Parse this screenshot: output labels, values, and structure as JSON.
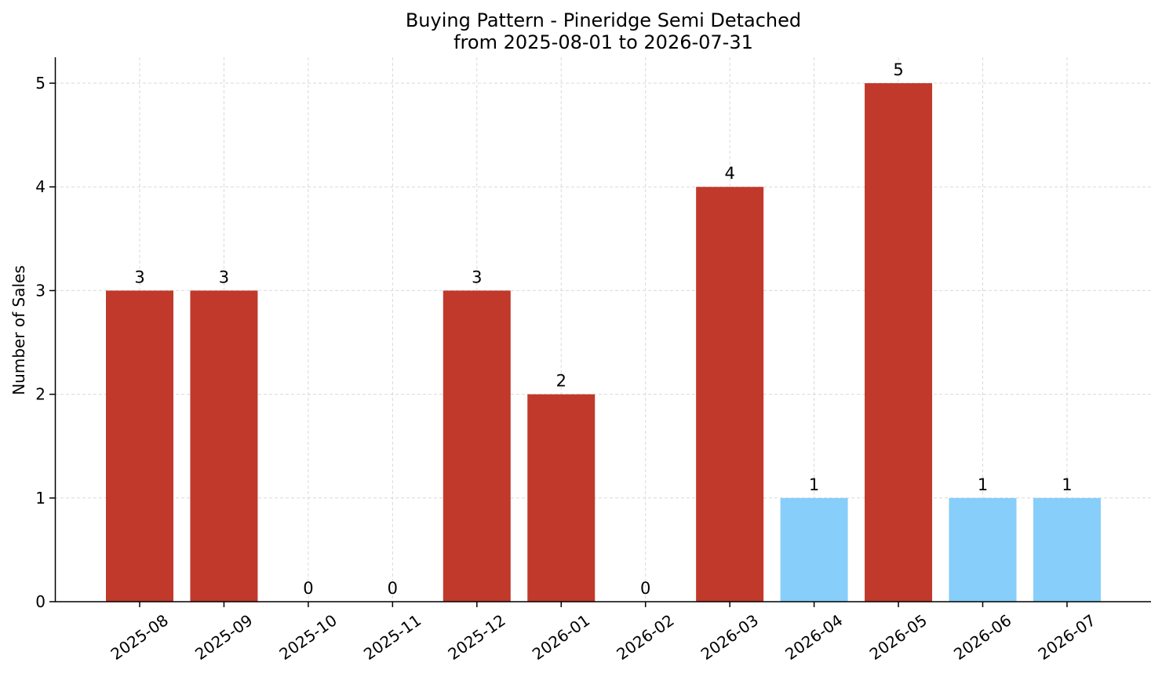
{
  "chart_data": {
    "type": "bar",
    "title": "Buying Pattern - Pineridge Semi Detached",
    "subtitle": "from 2025-08-01 to 2026-07-31",
    "xlabel": "",
    "ylabel": "Number of Sales",
    "categories": [
      "2025-08",
      "2025-09",
      "2025-10",
      "2025-11",
      "2025-12",
      "2026-01",
      "2026-02",
      "2026-03",
      "2026-04",
      "2026-05",
      "2026-06",
      "2026-07"
    ],
    "values": [
      3,
      3,
      0,
      0,
      3,
      2,
      0,
      4,
      1,
      5,
      1,
      1
    ],
    "bar_colors": [
      "#c0392b",
      "#c0392b",
      "#c0392b",
      "#c0392b",
      "#c0392b",
      "#c0392b",
      "#c0392b",
      "#c0392b",
      "#87cefa",
      "#c0392b",
      "#87cefa",
      "#87cefa"
    ],
    "yticks": [
      0,
      1,
      2,
      3,
      4,
      5
    ],
    "ylim": [
      0,
      5.25
    ],
    "grid": true,
    "legend": "none"
  }
}
